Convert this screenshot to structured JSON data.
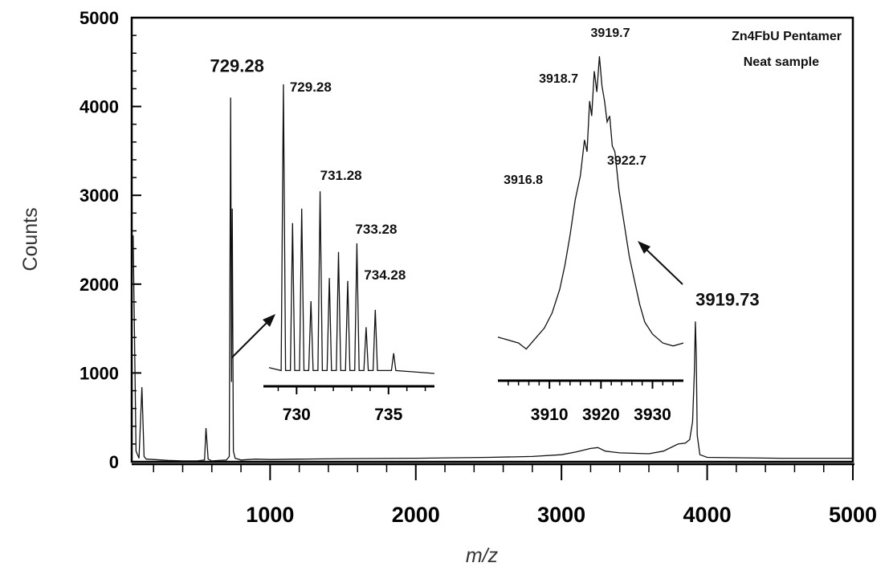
{
  "chart_data": {
    "type": "line",
    "title": "",
    "xlabel": "m/z",
    "ylabel": "Counts",
    "xlim": [
      50,
      5000
    ],
    "ylim": [
      0,
      5000
    ],
    "x_ticks": [
      1000,
      2000,
      3000,
      4000,
      5000
    ],
    "y_ticks": [
      0,
      1000,
      2000,
      3000,
      4000,
      5000
    ],
    "legend_text": [
      "Zn4FbU Pentamer",
      "Neat sample"
    ],
    "legend_position": "top-right",
    "grid": false,
    "main_series": {
      "points": [
        [
          60,
          2550
        ],
        [
          80,
          120
        ],
        [
          100,
          40
        ],
        [
          120,
          840
        ],
        [
          135,
          60
        ],
        [
          150,
          30
        ],
        [
          200,
          25
        ],
        [
          300,
          15
        ],
        [
          400,
          10
        ],
        [
          500,
          10
        ],
        [
          550,
          20
        ],
        [
          560,
          380
        ],
        [
          575,
          30
        ],
        [
          600,
          10
        ],
        [
          700,
          20
        ],
        [
          720,
          60
        ],
        [
          729,
          4100
        ],
        [
          735,
          900
        ],
        [
          740,
          2850
        ],
        [
          748,
          120
        ],
        [
          760,
          40
        ],
        [
          800,
          20
        ],
        [
          900,
          30
        ],
        [
          1000,
          25
        ],
        [
          1200,
          30
        ],
        [
          1500,
          35
        ],
        [
          2000,
          40
        ],
        [
          2500,
          50
        ],
        [
          2800,
          60
        ],
        [
          3000,
          80
        ],
        [
          3100,
          110
        ],
        [
          3200,
          150
        ],
        [
          3250,
          160
        ],
        [
          3300,
          120
        ],
        [
          3400,
          100
        ],
        [
          3600,
          90
        ],
        [
          3700,
          120
        ],
        [
          3800,
          200
        ],
        [
          3850,
          210
        ],
        [
          3880,
          250
        ],
        [
          3900,
          450
        ],
        [
          3912,
          1000
        ],
        [
          3919,
          1580
        ],
        [
          3925,
          1200
        ],
        [
          3932,
          300
        ],
        [
          3950,
          80
        ],
        [
          4000,
          50
        ],
        [
          4500,
          40
        ],
        [
          5000,
          40
        ]
      ],
      "peak_labels": [
        {
          "text": "729.28",
          "x": 729,
          "y": 4100
        },
        {
          "text": "3919.73",
          "x": 3919,
          "y": 1580
        }
      ]
    },
    "inset_low": {
      "xlim": [
        728.5,
        737.5
      ],
      "x_ticks": [
        730,
        735
      ],
      "peaks": [
        {
          "x": 729.28,
          "rel": 1.0
        },
        {
          "x": 729.78,
          "rel": 0.52
        },
        {
          "x": 730.28,
          "rel": 0.57
        },
        {
          "x": 730.78,
          "rel": 0.25
        },
        {
          "x": 731.28,
          "rel": 0.63
        },
        {
          "x": 731.78,
          "rel": 0.33
        },
        {
          "x": 732.28,
          "rel": 0.42
        },
        {
          "x": 732.78,
          "rel": 0.32
        },
        {
          "x": 733.28,
          "rel": 0.45
        },
        {
          "x": 733.78,
          "rel": 0.16
        },
        {
          "x": 734.28,
          "rel": 0.22
        },
        {
          "x": 735.28,
          "rel": 0.07
        }
      ],
      "peak_labels": [
        {
          "text": "729.28",
          "x": 729.28
        },
        {
          "text": "731.28",
          "x": 731.28
        },
        {
          "text": "733.28",
          "x": 733.28
        },
        {
          "text": "734.28",
          "x": 734.28
        }
      ]
    },
    "inset_high": {
      "xlim": [
        3900,
        3936
      ],
      "x_ticks": [
        3910,
        3920,
        3930
      ],
      "points": [
        [
          3900,
          0.06
        ],
        [
          3902,
          0.05
        ],
        [
          3904,
          0.04
        ],
        [
          3905.5,
          0.02
        ],
        [
          3907,
          0.05
        ],
        [
          3909,
          0.09
        ],
        [
          3910.5,
          0.14
        ],
        [
          3912,
          0.22
        ],
        [
          3913,
          0.3
        ],
        [
          3914,
          0.4
        ],
        [
          3915,
          0.52
        ],
        [
          3916,
          0.6
        ],
        [
          3916.8,
          0.72
        ],
        [
          3917.3,
          0.68
        ],
        [
          3917.8,
          0.85
        ],
        [
          3918.2,
          0.8
        ],
        [
          3918.7,
          0.95
        ],
        [
          3919.2,
          0.88
        ],
        [
          3919.7,
          1.0
        ],
        [
          3920.2,
          0.9
        ],
        [
          3920.7,
          0.85
        ],
        [
          3921.2,
          0.78
        ],
        [
          3921.7,
          0.8
        ],
        [
          3922.2,
          0.7
        ],
        [
          3922.7,
          0.68
        ],
        [
          3923.5,
          0.55
        ],
        [
          3924.5,
          0.44
        ],
        [
          3925.5,
          0.33
        ],
        [
          3926.5,
          0.25
        ],
        [
          3927.5,
          0.17
        ],
        [
          3928.5,
          0.11
        ],
        [
          3930,
          0.07
        ],
        [
          3932,
          0.04
        ],
        [
          3934,
          0.03
        ],
        [
          3936,
          0.04
        ]
      ],
      "peak_labels": [
        {
          "text": "3919.7",
          "x": 3919.7
        },
        {
          "text": "3918.7",
          "x": 3918.7
        },
        {
          "text": "3916.8",
          "x": 3916.8
        },
        {
          "text": "3922.7",
          "x": 3922.7
        }
      ]
    }
  }
}
